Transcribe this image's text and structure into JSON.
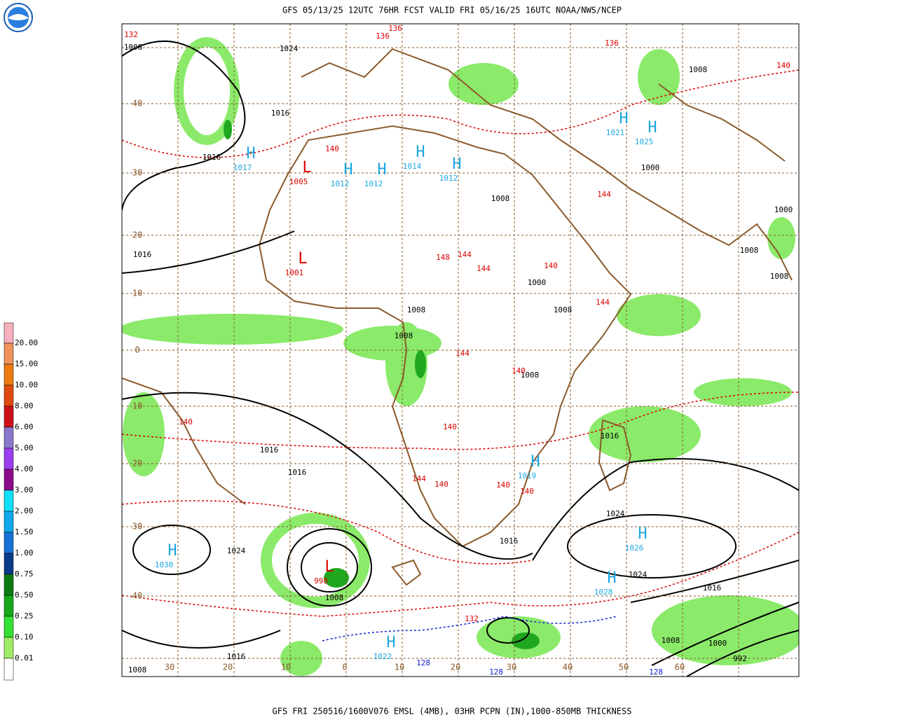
{
  "header": {
    "title": "GFS 05/13/25 12UTC 76HR FCST VALID FRI 05/16/25 16UTC NOAA/NWS/NCEP"
  },
  "footer": {
    "text": "GFS FRI 250516/1600V076 EMSL (4MB), 03HR PCPN (IN),1000-850MB THICKNESS"
  },
  "legend": {
    "items": [
      {
        "label": "20.00",
        "color": "#f7b0bd"
      },
      {
        "label": "15.00",
        "color": "#f0925a"
      },
      {
        "label": "10.00",
        "color": "#ee7a10"
      },
      {
        "label": "8.00",
        "color": "#e04a10"
      },
      {
        "label": "6.00",
        "color": "#cc1018"
      },
      {
        "label": "5.00",
        "color": "#8a78cc"
      },
      {
        "label": "4.00",
        "color": "#9a3ef0"
      },
      {
        "label": "3.00",
        "color": "#8a0c8a"
      },
      {
        "label": "2.00",
        "color": "#10e0f8"
      },
      {
        "label": "1.50",
        "color": "#10a8ea"
      },
      {
        "label": "1.00",
        "color": "#1670d8"
      },
      {
        "label": "0.75",
        "color": "#0c3a8a"
      },
      {
        "label": "0.50",
        "color": "#0b7a12"
      },
      {
        "label": "0.25",
        "color": "#16a81a"
      },
      {
        "label": "0.10",
        "color": "#34e034"
      },
      {
        "label": "0.01",
        "color": "#9cec66"
      }
    ]
  },
  "grid": {
    "lat_labels": [
      "40",
      "30",
      "20",
      "10",
      "0",
      "10",
      "20",
      "30",
      "40"
    ],
    "lon_labels": [
      "30",
      "20",
      "10",
      "0",
      "10",
      "20",
      "30",
      "40",
      "50",
      "60"
    ]
  },
  "pressure_centers": [
    {
      "symbol": "H",
      "value": "1017"
    },
    {
      "symbol": "H",
      "value": "1012"
    },
    {
      "symbol": "H",
      "value": "1012"
    },
    {
      "symbol": "H",
      "value": "1014"
    },
    {
      "symbol": "H",
      "value": "1012"
    },
    {
      "symbol": "H",
      "value": "1021"
    },
    {
      "symbol": "H",
      "value": "1025"
    },
    {
      "symbol": "H",
      "value": "1030"
    },
    {
      "symbol": "L",
      "value": "998"
    },
    {
      "symbol": "H",
      "value": "1022"
    },
    {
      "symbol": "H",
      "value": "1019"
    },
    {
      "symbol": "H",
      "value": "1026"
    },
    {
      "symbol": "H",
      "value": "1028"
    },
    {
      "symbol": "L",
      "value": "1005"
    },
    {
      "symbol": "L",
      "value": "1001"
    }
  ],
  "isobar_labels": [
    "1024",
    "1016",
    "1016",
    "1016",
    "1016",
    "1016",
    "1024",
    "1008",
    "1016",
    "1008",
    "1024",
    "1024",
    "1016",
    "1008",
    "1000",
    "992",
    "1016",
    "1016",
    "1000",
    "1008",
    "1000",
    "1008",
    "1008",
    "1008",
    "1008",
    "1008",
    "1008",
    "1008",
    "1000",
    "1008"
  ],
  "thickness_labels": [
    "132",
    "136",
    "136",
    "136",
    "140",
    "140",
    "144",
    "144",
    "144",
    "148",
    "140",
    "140",
    "140",
    "144",
    "140",
    "140",
    "132",
    "128",
    "128",
    "128",
    "140",
    "144",
    "144",
    "140"
  ]
}
